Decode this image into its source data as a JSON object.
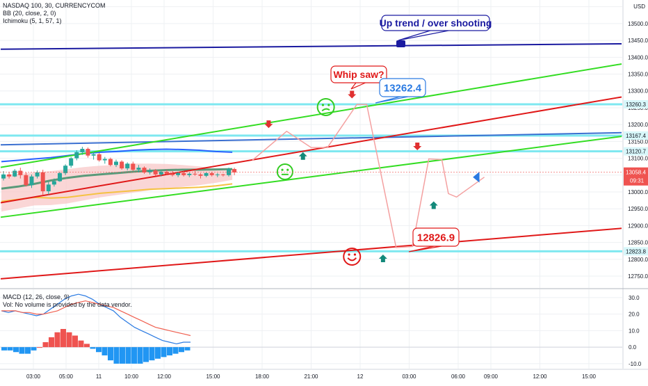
{
  "header": {
    "symbol": "NASDAQ 100, 30, CURRENCYCOM",
    "indicators": [
      "BB (20, close, 2, 0)",
      "Ichimoku (5, 1, 57, 1)"
    ]
  },
  "price_axis": {
    "currency": "USD",
    "ticks": [
      "13550.0",
      "13500.0",
      "13450.0",
      "13400.0",
      "13350.0",
      "13300.0",
      "13250.0",
      "13200.0",
      "13150.0",
      "13100.0",
      "13050.0",
      "13000.0",
      "12950.0",
      "12900.0",
      "12850.0",
      "12800.0",
      "12750.0"
    ],
    "tick_values": [
      13550,
      13500,
      13450,
      13400,
      13350,
      13300,
      13250,
      13200,
      13150,
      13100,
      13050,
      13000,
      12950,
      12900,
      12850,
      12800,
      12750
    ],
    "level_labels": [
      {
        "text": "13260.3",
        "value": 13260.3
      },
      {
        "text": "13167.4",
        "value": 13167.4
      },
      {
        "text": "13120.7",
        "value": 13120.7
      },
      {
        "text": "12823.8",
        "value": 12823.8
      }
    ],
    "last_price": {
      "text": "13058.4",
      "value": 13058.4
    },
    "countdown": "09:31"
  },
  "time_axis": {
    "labels": [
      "03:00",
      "05:00",
      "11",
      "10:00",
      "12:00",
      "15:00",
      "18:00",
      "21:00",
      "12",
      "03:00",
      "06:00",
      "09:00",
      "12:00",
      "15:00"
    ],
    "positions": [
      2,
      4,
      6,
      8,
      10,
      13,
      16,
      19,
      22,
      25,
      28,
      30,
      33,
      36
    ]
  },
  "annotations": {
    "up_trend": "Up trend / over shooting",
    "whip_saw": "Whip saw?",
    "high_label": "13262.4",
    "low_label": "12826.9"
  },
  "macd_panel": {
    "title": "MACD (12, 26, close, 9)",
    "vol_note": "Vol: No volume is provided by the data vendor.",
    "ticks": [
      "30.0",
      "20.0",
      "10.0",
      "0.0",
      "-10.0"
    ],
    "tick_values": [
      30,
      20,
      10,
      0,
      -10
    ]
  },
  "colors": {
    "bull": "#26a69a",
    "bear": "#ef5350",
    "green_channel": "#33dd22",
    "red_channel": "#e01818",
    "blue_line": "#1a1aa0",
    "steel_line": "#3a6fd0",
    "cyan_level": "#7ee8f0",
    "path_arrow": "#f4a0a0",
    "cloud": "#f8c8c8",
    "macd_line": "#2a7ae2",
    "signal_line": "#f06050"
  },
  "chart_data": [
    {
      "type": "candlestick",
      "title": "NASDAQ 100, 30, CURRENCYCOM",
      "ylim": [
        12715,
        13570
      ],
      "x_axis_labels": [
        "03:00",
        "05:00",
        "11",
        "10:00",
        "12:00",
        "15:00",
        "18:00",
        "21:00",
        "12",
        "03:00",
        "06:00",
        "09:00",
        "12:00",
        "15:00"
      ],
      "candles": [
        [
          13040,
          13062,
          13034,
          13052
        ],
        [
          13052,
          13060,
          13040,
          13046
        ],
        [
          13046,
          13068,
          13044,
          13063
        ],
        [
          13063,
          13072,
          13040,
          13050
        ],
        [
          13050,
          13058,
          13016,
          13020
        ],
        [
          13020,
          13052,
          13012,
          13046
        ],
        [
          13046,
          13064,
          13040,
          13058
        ],
        [
          13058,
          13066,
          12990,
          13002
        ],
        [
          13002,
          13030,
          12992,
          13022
        ],
        [
          13022,
          13040,
          13016,
          13032
        ],
        [
          13032,
          13060,
          13030,
          13056
        ],
        [
          13056,
          13082,
          13050,
          13078
        ],
        [
          13078,
          13104,
          13072,
          13100
        ],
        [
          13100,
          13124,
          13094,
          13118
        ],
        [
          13118,
          13134,
          13110,
          13128
        ],
        [
          13128,
          13132,
          13102,
          13108
        ],
        [
          13108,
          13120,
          13096,
          13112
        ],
        [
          13112,
          13116,
          13090,
          13094
        ],
        [
          13094,
          13104,
          13084,
          13098
        ],
        [
          13098,
          13102,
          13076,
          13080
        ],
        [
          13080,
          13096,
          13074,
          13090
        ],
        [
          13090,
          13094,
          13066,
          13070
        ],
        [
          13070,
          13088,
          13064,
          13084
        ],
        [
          13084,
          13090,
          13062,
          13066
        ],
        [
          13066,
          13080,
          13058,
          13072
        ],
        [
          13072,
          13076,
          13054,
          13058
        ],
        [
          13058,
          13070,
          13052,
          13064
        ],
        [
          13064,
          13068,
          13048,
          13052
        ],
        [
          13052,
          13064,
          13046,
          13060
        ],
        [
          13060,
          13066,
          13050,
          13054
        ],
        [
          13054,
          13062,
          13046,
          13050
        ],
        [
          13050,
          13060,
          13044,
          13056
        ],
        [
          13056,
          13062,
          13046,
          13050
        ],
        [
          13050,
          13058,
          13044,
          13054
        ],
        [
          13054,
          13062,
          13048,
          13052
        ],
        [
          13052,
          13056,
          13040,
          13048
        ],
        [
          13048,
          13058,
          13044,
          13056
        ],
        [
          13056,
          13060,
          13046,
          13050
        ],
        [
          13050,
          13056,
          13044,
          13052
        ],
        [
          13052,
          13054,
          13046,
          13050
        ],
        [
          13050,
          13072,
          13046,
          13068
        ],
        [
          13068,
          13072,
          13050,
          13058
        ]
      ],
      "bb_upper": [
        13090,
        13094,
        13098,
        13102,
        13108,
        13114,
        13118,
        13120,
        13124,
        13126,
        13127,
        13126,
        13124,
        13120,
        13118
      ],
      "bb_basis": [
        13010,
        13016,
        13024,
        13034,
        13042,
        13048,
        13052,
        13056,
        13060,
        13063,
        13065,
        13066,
        13066,
        13067,
        13068
      ],
      "lagging_span": [
        12972,
        12978,
        12984,
        12982,
        12984,
        12990,
        12996,
        13000,
        13004,
        13008,
        13010,
        13012,
        13014,
        13018,
        13024
      ],
      "price_levels": [
        13260.3,
        13167.4,
        13120.7,
        12823.8
      ],
      "projected_path": [
        {
          "x": 15.4,
          "y": 13094
        },
        {
          "x": 17.5,
          "y": 13180
        },
        {
          "x": 19.0,
          "y": 13132
        },
        {
          "x": 20.0,
          "y": 13132
        },
        {
          "x": 21.8,
          "y": 13260
        },
        {
          "x": 22.4,
          "y": 13260
        },
        {
          "x": 24.2,
          "y": 12835
        },
        {
          "x": 25.2,
          "y": 12838
        },
        {
          "x": 26.2,
          "y": 13098
        },
        {
          "x": 27.0,
          "y": 13096
        },
        {
          "x": 27.4,
          "y": 12995
        },
        {
          "x": 27.9,
          "y": 12985
        },
        {
          "x": 29.6,
          "y": 13044
        }
      ]
    },
    {
      "type": "bar",
      "title": "MACD (12, 26, close, 9)",
      "ylim": [
        -13,
        35
      ],
      "histogram": [
        -2,
        -2,
        -3,
        -4,
        -4,
        -2,
        0,
        3,
        6,
        9,
        11,
        9,
        7,
        4,
        2,
        -1,
        -3,
        -5,
        -8,
        -10,
        -10,
        -10,
        -10,
        -10,
        -9,
        -8,
        -7,
        -6,
        -5,
        -4,
        -3,
        -2
      ],
      "macd": [
        22,
        21,
        22,
        21,
        20,
        19,
        20,
        23,
        26,
        29,
        31,
        32,
        31,
        29,
        26,
        24,
        22,
        18,
        15,
        12,
        10,
        8,
        6,
        4,
        3,
        2,
        3,
        3
      ],
      "signal": [
        22,
        22,
        22,
        21,
        21,
        20,
        20,
        21,
        22,
        24,
        26,
        27,
        28,
        27,
        26,
        25,
        24,
        22,
        20,
        18,
        16,
        14,
        12,
        11,
        10,
        9,
        8,
        7
      ]
    }
  ]
}
